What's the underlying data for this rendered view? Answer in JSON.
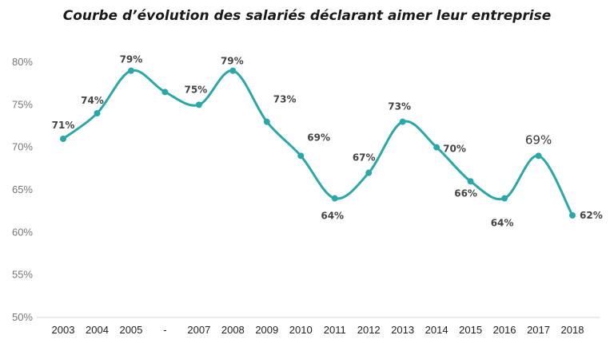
{
  "chart_data": {
    "type": "line",
    "title": "Courbe d’évolution des salariés déclarant aimer leur entreprise",
    "xlabel": "",
    "ylabel": "",
    "ylim": [
      50,
      80
    ],
    "yticks": [
      "50%",
      "55%",
      "60%",
      "65%",
      "70%",
      "75%",
      "80%"
    ],
    "ytick_values": [
      50,
      55,
      60,
      65,
      70,
      75,
      80
    ],
    "categories": [
      "2003",
      "2004",
      "2005",
      "-",
      "2007",
      "2008",
      "2009",
      "2010",
      "2011",
      "2012",
      "2013",
      "2014",
      "2015",
      "2016",
      "2017",
      "2018"
    ],
    "series": [
      {
        "name": "Salariés déclarant aimer leur entreprise",
        "color": "#2aa8a8",
        "values": [
          71,
          74,
          79,
          76.5,
          75,
          79,
          73,
          69,
          64,
          67,
          73,
          70,
          66,
          64,
          69,
          62
        ],
        "labels": [
          "71%",
          "74%",
          "79%",
          "",
          "75%",
          "79%",
          "73%",
          "69%",
          "64%",
          "67%",
          "73%",
          "70%",
          "66%",
          "64%",
          "69%",
          "62%"
        ]
      }
    ]
  }
}
